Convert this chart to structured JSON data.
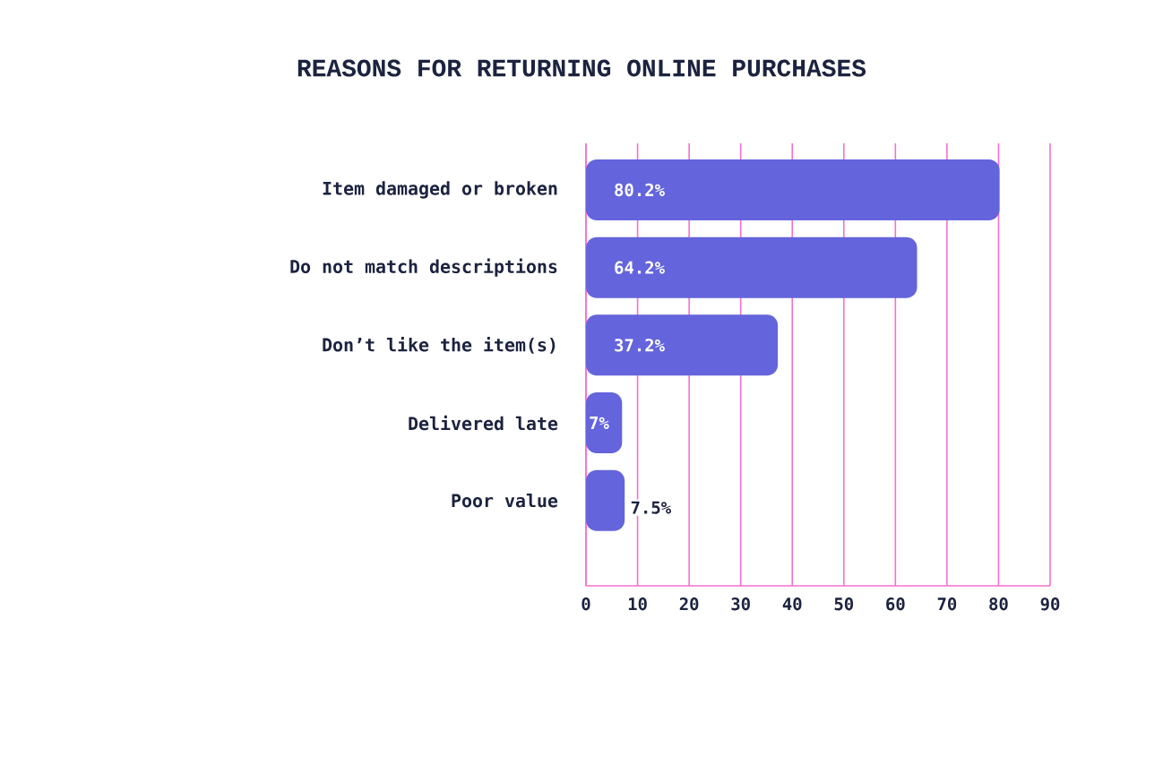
{
  "chart_data": {
    "type": "bar",
    "orientation": "horizontal",
    "title": "REASONS FOR RETURNING ONLINE PURCHASES",
    "categories": [
      "Item damaged or broken",
      "Do not match descriptions",
      "Don’t like the item(s)",
      "Delivered late",
      "Poor value"
    ],
    "values": [
      80.2,
      64.2,
      37.2,
      7,
      7.5
    ],
    "value_labels": [
      "80.2%",
      "64.2%",
      "37.2%",
      "7%",
      "7.5%"
    ],
    "color": "#6464dc",
    "xlim": [
      0,
      90
    ],
    "xticks": [
      0,
      10,
      20,
      30,
      40,
      50,
      60,
      70,
      80,
      90
    ],
    "grid": "x"
  }
}
